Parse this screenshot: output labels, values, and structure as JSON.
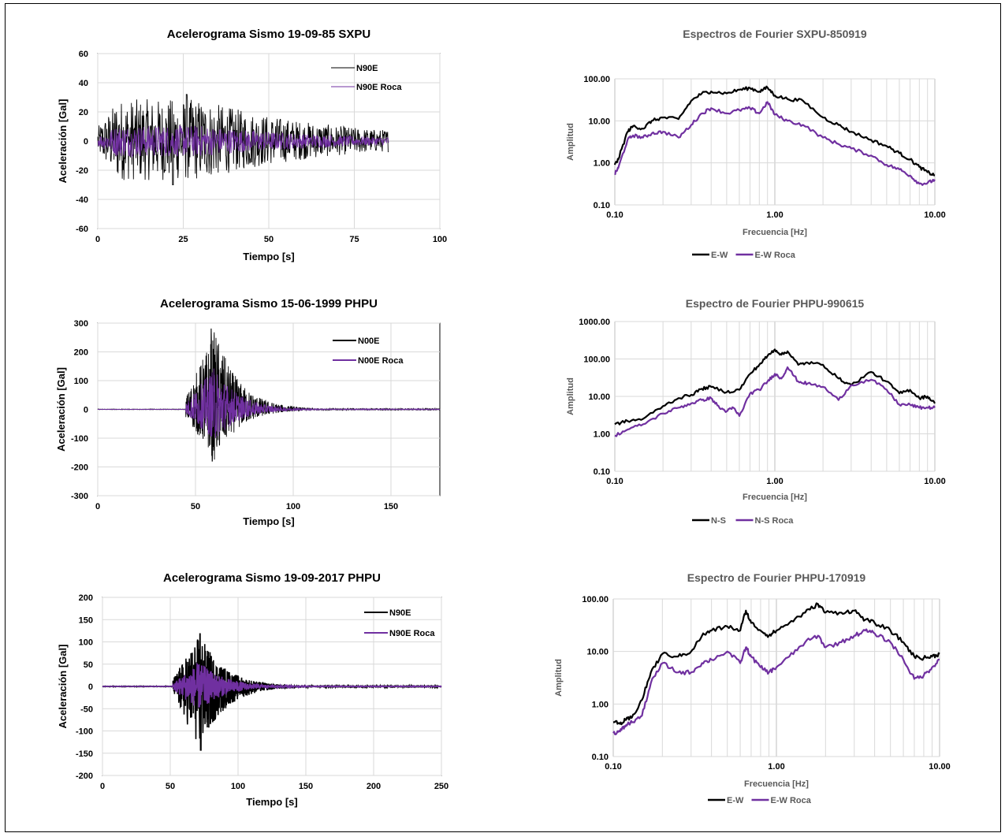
{
  "chart_data": [
    {
      "type": "line",
      "title": "Acelerograma Sismo 19-09-85 SXPU",
      "xlabel": "Tiempo [s]",
      "ylabel": "Aceleración [Gal]",
      "xlim": [
        0,
        100
      ],
      "ylim": [
        -60,
        60
      ],
      "xticks": [
        "0",
        "25",
        "50",
        "75",
        "100"
      ],
      "yticks": [
        "60",
        "40",
        "20",
        "0",
        "-20",
        "-40",
        "-60"
      ],
      "grid": true,
      "legend": "top-right",
      "duration": 85,
      "series": [
        {
          "name": "N90E",
          "color": "#000000",
          "peak_max": 32,
          "peak_min": -30
        },
        {
          "name": "N90E Roca",
          "color": "#7030a0",
          "peak_max": 12,
          "peak_min": -12
        }
      ]
    },
    {
      "type": "line",
      "title": "Espectros de Fourier SXPU-850919",
      "xlabel": "Frecuencia [Hz]",
      "ylabel": "Amplitud",
      "xscale": "log",
      "yscale": "log",
      "xlim": [
        0.1,
        10
      ],
      "ylim": [
        0.1,
        100
      ],
      "xticks": [
        "0.10",
        "1.00",
        "10.00"
      ],
      "yticks": [
        "100.00",
        "10.00",
        "1.00",
        "0.10"
      ],
      "grid": true,
      "legend": "bottom",
      "series": [
        {
          "name": "E-W",
          "color": "#000000",
          "x": [
            0.1,
            0.105,
            0.12,
            0.13,
            0.15,
            0.17,
            0.2,
            0.25,
            0.3,
            0.35,
            0.4,
            0.5,
            0.6,
            0.7,
            0.8,
            0.9,
            1.0,
            1.2,
            1.5,
            2.0,
            2.5,
            3.0,
            4.0,
            5.0,
            6.0,
            7.0,
            8.0,
            9.0,
            10.0
          ],
          "y": [
            0.9,
            1.2,
            5.5,
            7.5,
            6.5,
            10,
            12,
            11,
            30,
            45,
            50,
            45,
            55,
            60,
            50,
            62,
            40,
            33,
            30,
            12,
            8,
            5.5,
            3.5,
            2.5,
            1.7,
            1.2,
            0.8,
            0.6,
            0.5
          ]
        },
        {
          "name": "E-W Roca",
          "color": "#7030a0",
          "x": [
            0.1,
            0.105,
            0.12,
            0.13,
            0.15,
            0.17,
            0.2,
            0.25,
            0.3,
            0.35,
            0.4,
            0.5,
            0.6,
            0.7,
            0.8,
            0.9,
            1.0,
            1.2,
            1.5,
            2.0,
            2.5,
            3.0,
            4.0,
            5.0,
            6.0,
            7.0,
            8.0,
            9.0,
            10.0
          ],
          "y": [
            0.55,
            0.75,
            3.5,
            4.5,
            4.0,
            5.0,
            5.5,
            4.0,
            8.0,
            15,
            20,
            15,
            18,
            20,
            15,
            28,
            14,
            10,
            8,
            4,
            2.8,
            2.2,
            1.5,
            0.9,
            0.7,
            0.5,
            0.32,
            0.33,
            0.4
          ]
        }
      ]
    },
    {
      "type": "line",
      "title": "Acelerograma Sismo 15-06-1999 PHPU",
      "xlabel": "Tiempo [s]",
      "ylabel": "Aceleración [Gal]",
      "xlim": [
        0,
        175
      ],
      "ylim": [
        -300,
        300
      ],
      "xticks": [
        "0",
        "50",
        "100",
        "150"
      ],
      "yticks": [
        "300",
        "200",
        "100",
        "0",
        "-100",
        "-200",
        "-300"
      ],
      "grid": true,
      "legend": "top-right",
      "duration": 175,
      "series": [
        {
          "name": "N00E",
          "color": "#000000",
          "peak_max": 280,
          "peak_min": -180
        },
        {
          "name": "N00E Roca",
          "color": "#7030a0",
          "peak_max": 150,
          "peak_min": -110
        }
      ]
    },
    {
      "type": "line",
      "title": "Espectro de Fourier PHPU-990615",
      "xlabel": "Frecuencia [Hz]",
      "ylabel": "Amplitud",
      "xscale": "log",
      "yscale": "log",
      "xlim": [
        0.1,
        10
      ],
      "ylim": [
        0.1,
        1000
      ],
      "xticks": [
        "0.10",
        "1.00",
        "10.00"
      ],
      "yticks": [
        "1000.00",
        "100.00",
        "10.00",
        "1.00",
        "0.10"
      ],
      "grid": true,
      "legend": "bottom",
      "series": [
        {
          "name": "N-S",
          "color": "#000000",
          "x": [
            0.1,
            0.12,
            0.15,
            0.2,
            0.25,
            0.3,
            0.35,
            0.4,
            0.5,
            0.6,
            0.7,
            0.8,
            0.9,
            1.0,
            1.1,
            1.2,
            1.4,
            1.6,
            2.0,
            2.5,
            3.0,
            4.0,
            5.0,
            6.0,
            7.0,
            8.0,
            9.0,
            10.0
          ],
          "y": [
            1.8,
            2.2,
            2.5,
            5.5,
            9,
            11,
            16,
            18,
            13,
            15,
            40,
            70,
            120,
            180,
            130,
            160,
            70,
            80,
            70,
            30,
            20,
            45,
            25,
            12,
            15,
            9,
            10,
            6.5
          ]
        },
        {
          "name": "N-S Roca",
          "color": "#7030a0",
          "x": [
            0.1,
            0.12,
            0.15,
            0.2,
            0.25,
            0.3,
            0.35,
            0.4,
            0.45,
            0.5,
            0.55,
            0.6,
            0.7,
            0.8,
            0.9,
            1.0,
            1.1,
            1.2,
            1.4,
            1.6,
            2.0,
            2.5,
            3.0,
            4.0,
            5.0,
            6.0,
            7.0,
            8.0,
            9.0,
            10.0
          ],
          "y": [
            0.9,
            1.3,
            1.8,
            3.5,
            5,
            6.5,
            8,
            9,
            5,
            4,
            5,
            3,
            12,
            15,
            25,
            40,
            30,
            60,
            25,
            22,
            18,
            8,
            20,
            28,
            15,
            6,
            6,
            5,
            5,
            5
          ]
        }
      ]
    },
    {
      "type": "line",
      "title": "Acelerograma Sismo 19-09-2017 PHPU",
      "xlabel": "Tiempo [s]",
      "ylabel": "Aceleración [Gal]",
      "xlim": [
        0,
        250
      ],
      "ylim": [
        -200,
        200
      ],
      "xticks": [
        "0",
        "50",
        "100",
        "150",
        "200",
        "250"
      ],
      "yticks": [
        "200",
        "150",
        "100",
        "50",
        "0",
        "-50",
        "-100",
        "-150",
        "-200"
      ],
      "grid": true,
      "legend": "top-right",
      "duration": 250,
      "series": [
        {
          "name": "N90E",
          "color": "#000000",
          "peak_max": 118,
          "peak_min": -143
        },
        {
          "name": "N90E Roca",
          "color": "#7030a0",
          "peak_max": 55,
          "peak_min": -55
        }
      ]
    },
    {
      "type": "line",
      "title": "Espectro de Fourier PHPU-170919",
      "xlabel": "Frecuencia [Hz]",
      "ylabel": "Amplitud",
      "xscale": "log",
      "yscale": "log",
      "xlim": [
        0.1,
        10
      ],
      "ylim": [
        0.1,
        100
      ],
      "xticks": [
        "0.10",
        "1.00",
        "10.00"
      ],
      "yticks": [
        "100.00",
        "10.00",
        "1.00",
        "0.10"
      ],
      "grid": true,
      "legend": "bottom",
      "series": [
        {
          "name": "E-W",
          "color": "#000000",
          "x": [
            0.1,
            0.11,
            0.12,
            0.13,
            0.15,
            0.17,
            0.2,
            0.25,
            0.3,
            0.35,
            0.4,
            0.5,
            0.6,
            0.65,
            0.7,
            0.8,
            0.9,
            1.0,
            1.2,
            1.5,
            1.8,
            2.0,
            2.5,
            3.0,
            3.5,
            4.0,
            5.0,
            6.0,
            7.0,
            8.0,
            9.0,
            10.0
          ],
          "y": [
            0.45,
            0.42,
            0.5,
            0.55,
            1.2,
            4,
            9,
            8,
            10,
            20,
            25,
            30,
            25,
            60,
            35,
            25,
            20,
            25,
            35,
            55,
            80,
            55,
            55,
            60,
            40,
            35,
            25,
            15,
            8,
            7.5,
            8,
            9
          ]
        },
        {
          "name": "E-W Roca",
          "color": "#7030a0",
          "x": [
            0.1,
            0.11,
            0.12,
            0.13,
            0.15,
            0.17,
            0.2,
            0.25,
            0.3,
            0.35,
            0.4,
            0.5,
            0.6,
            0.65,
            0.7,
            0.8,
            0.9,
            1.0,
            1.2,
            1.5,
            1.8,
            2.0,
            2.5,
            3.0,
            3.5,
            4.0,
            5.0,
            6.0,
            7.0,
            8.0,
            9.0,
            10.0
          ],
          "y": [
            0.28,
            0.3,
            0.4,
            0.45,
            0.6,
            2.5,
            6,
            4,
            4,
            6,
            7,
            10,
            6,
            12,
            8,
            5,
            4,
            5,
            8,
            15,
            20,
            12,
            15,
            20,
            25,
            22,
            15,
            7,
            3,
            3.5,
            5,
            7
          ]
        }
      ]
    }
  ]
}
